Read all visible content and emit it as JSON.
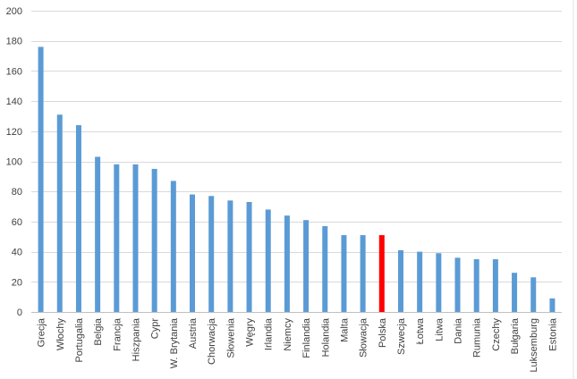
{
  "chart_data": {
    "type": "bar",
    "categories": [
      "Grecja",
      "Włochy",
      "Portugalia",
      "Belgia",
      "Francja",
      "Hiszpania",
      "Cypr",
      "W. Brytania",
      "Austria",
      "Chorwacja",
      "Słowenia",
      "Węgry",
      "Irlandia",
      "Niemcy",
      "Finlandia",
      "Holandia",
      "Malta",
      "Słowacja",
      "Polska",
      "Szwecja",
      "Łotwa",
      "Litwa",
      "Dania",
      "Rumunia",
      "Czechy",
      "Bułgaria",
      "Luksemburg",
      "Estonia"
    ],
    "values": [
      176,
      131,
      124,
      103,
      98,
      98,
      95,
      87,
      78,
      77,
      74,
      73,
      68,
      64,
      61,
      57,
      51,
      51,
      51,
      41,
      40,
      39,
      36,
      35,
      35,
      26,
      23,
      9
    ],
    "highlight": "Polska",
    "ylim": [
      0,
      200
    ],
    "yticks": [
      0,
      20,
      40,
      60,
      80,
      100,
      120,
      140,
      160,
      180,
      200
    ],
    "grid": true,
    "legend": "none",
    "colors": {
      "bar": "#5b9bd5",
      "highlight": "#ff0000",
      "grid": "#d9d9d9",
      "axis": "#bfbfbf"
    }
  }
}
